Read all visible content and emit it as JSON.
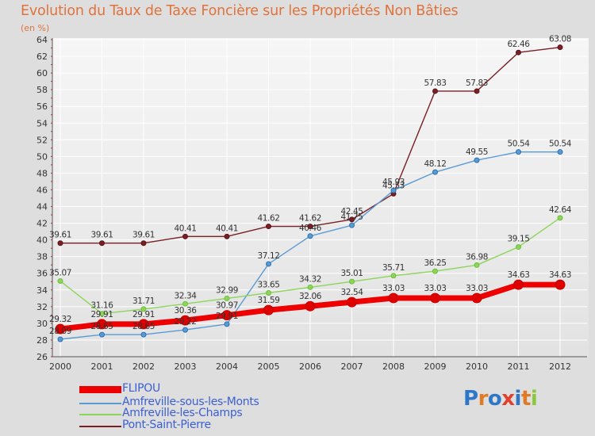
{
  "title": "Evolution du Taux de Taxe Foncière sur les Propriétés Non Bâties",
  "unit_label": "(en %)",
  "chart_data": {
    "type": "line",
    "title": "Evolution du Taux de Taxe Foncière sur les Propriétés Non Bâties",
    "ylabel": "(en %)",
    "xlabel": "",
    "ylim": [
      26,
      64
    ],
    "y_ticks": [
      "26",
      "28",
      "30",
      "32",
      "34",
      "36",
      "38",
      "40",
      "42",
      "44",
      "46",
      "48",
      "50",
      "52",
      "54",
      "56",
      "58",
      "60",
      "62",
      "64"
    ],
    "x": [
      "2000",
      "2001",
      "2002",
      "2003",
      "2004",
      "2005",
      "2006",
      "2007",
      "2008",
      "2009",
      "2010",
      "2011",
      "2012"
    ],
    "grid": true,
    "legend_position": "bottom-left",
    "series": [
      {
        "name": "Pont-Saint-Pierre",
        "color": "#7a1f24",
        "values": [
          39.61,
          39.61,
          39.61,
          40.41,
          40.41,
          41.62,
          41.62,
          42.45,
          45.53,
          57.83,
          57.83,
          62.46,
          63.08
        ],
        "labels": [
          "39.61",
          "39.61",
          "39.61",
          "40.41",
          "40.41",
          "41.62",
          "41.62",
          "42.45",
          "45.53",
          "57.83",
          "57.83",
          "62.46",
          "63.08"
        ]
      },
      {
        "name": "Amfreville-sous-les-Monts",
        "color": "#5b9bd5",
        "values": [
          28.09,
          28.65,
          28.65,
          29.22,
          29.91,
          37.12,
          40.46,
          41.75,
          45.93,
          48.12,
          49.55,
          50.54,
          50.54
        ],
        "labels": [
          "28.09",
          "28.65",
          "28.65",
          "29.22",
          "29.91",
          "37.12",
          "40.46",
          "41.75",
          "45.93",
          "48.12",
          "49.55",
          "50.54",
          "50.54"
        ]
      },
      {
        "name": "Amfreville-les-Champs",
        "color": "#8cd55a",
        "values": [
          35.07,
          31.16,
          31.71,
          32.34,
          32.99,
          33.65,
          34.32,
          35.01,
          35.71,
          36.25,
          36.98,
          39.15,
          42.64
        ],
        "labels": [
          "35.07",
          "31.16",
          "31.71",
          "32.34",
          "32.99",
          "33.65",
          "34.32",
          "35.01",
          "35.71",
          "36.25",
          "36.98",
          "39.15",
          "42.64"
        ]
      },
      {
        "name": "FLIPOU",
        "color": "#ee0000",
        "values": [
          29.32,
          29.91,
          29.91,
          30.36,
          30.97,
          31.59,
          32.06,
          32.54,
          33.03,
          33.03,
          33.03,
          34.63,
          34.63
        ],
        "labels": [
          "29.32",
          "29.91",
          "29.91",
          "30.36",
          "30.97",
          "31.59",
          "32.06",
          "32.54",
          "33.03",
          "33.03",
          "33.03",
          "34.63",
          "34.63"
        ]
      }
    ]
  },
  "legend": {
    "items": [
      {
        "name": "FLIPOU",
        "color": "#ee0000"
      },
      {
        "name": "Amfreville-sous-les-Monts",
        "color": "#5b9bd5"
      },
      {
        "name": "Amfreville-les-Champs",
        "color": "#8cd55a"
      },
      {
        "name": "Pont-Saint-Pierre",
        "color": "#7a1f24"
      }
    ]
  },
  "logo": {
    "text": "Proxiti",
    "colors": [
      "#2e77c8",
      "#e07a26",
      "#2e77c8",
      "#e04030",
      "#2e77c8",
      "#e07a26",
      "#8cc83c"
    ]
  }
}
